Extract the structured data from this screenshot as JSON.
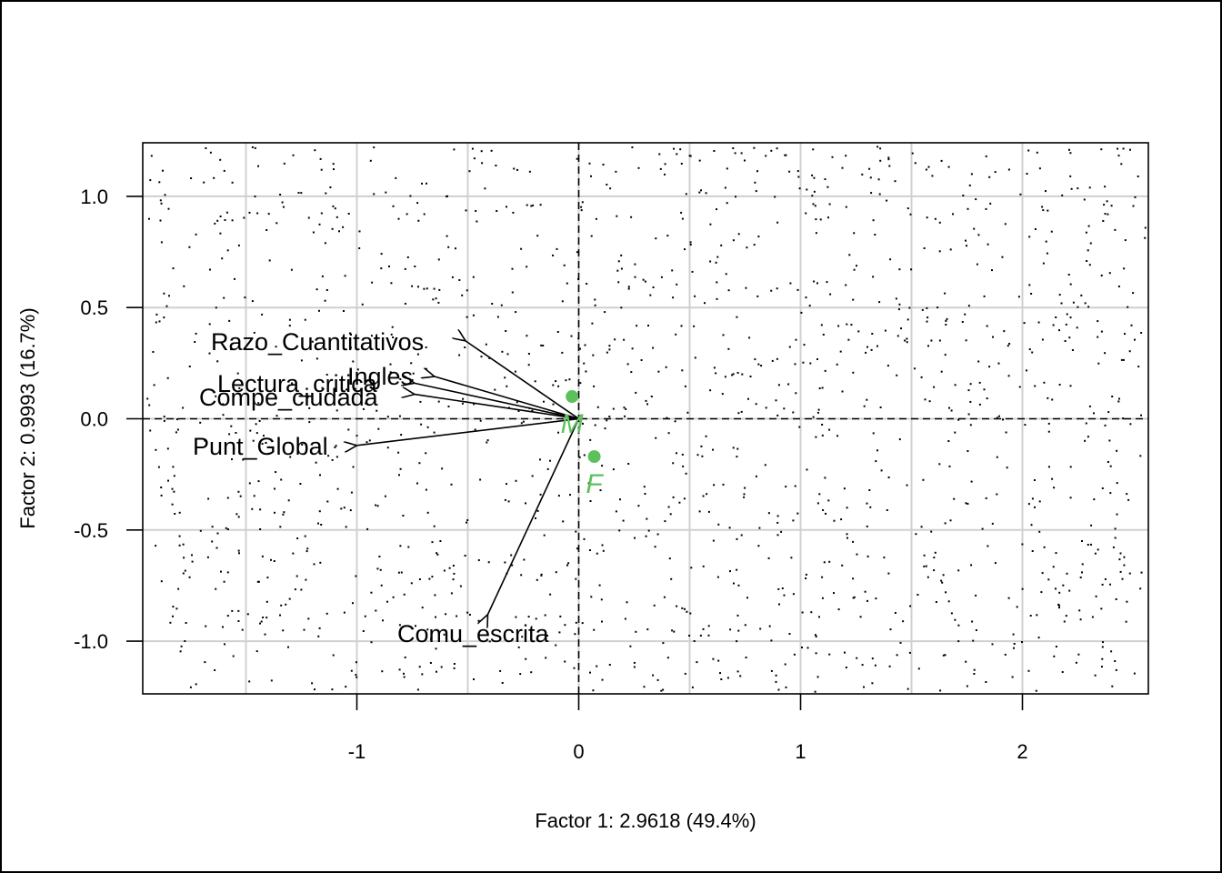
{
  "chart_data": {
    "type": "scatter",
    "xlabel": "Factor 1: 2.9618 (49.4%)",
    "ylabel": "Factor 2: 0.9993 (16.7%)",
    "xlim": [
      -1.97,
      2.57
    ],
    "ylim": [
      -1.24,
      1.24
    ],
    "x_ticks": [
      -1,
      0,
      1,
      2
    ],
    "x_tick_labels": [
      "-1",
      "0",
      "1",
      "2"
    ],
    "y_ticks": [
      1.0,
      0.5,
      0.0,
      -0.5,
      -1.0
    ],
    "y_tick_labels": [
      "1.0",
      "0.5",
      "0.0",
      "-0.5",
      "-1.0"
    ],
    "grid": true,
    "x_grid": [
      -1.5,
      -1,
      -0.5,
      0,
      0.5,
      1,
      1.5,
      2
    ],
    "y_grid": [
      -1.0,
      -0.5,
      0.0,
      0.5,
      1.0
    ],
    "reference_lines": {
      "x": 0,
      "y": 0,
      "style": "dashed"
    },
    "background_points": "dense cloud of small individual observations",
    "variable_arrows": [
      {
        "name": "Razo_Cuantitativos",
        "x": -0.51,
        "y": 0.35
      },
      {
        "name": "Ingles",
        "x": -0.65,
        "y": 0.19
      },
      {
        "name": "Lectura_critica",
        "x": -0.74,
        "y": 0.16
      },
      {
        "name": "Compe_ciudada",
        "x": -0.74,
        "y": 0.11
      },
      {
        "name": "Punt_Global",
        "x": -1.0,
        "y": -0.12
      },
      {
        "name": "Comu_escrita",
        "x": -0.41,
        "y": -0.88
      }
    ],
    "supplementary_points": [
      {
        "name": "M",
        "x": -0.03,
        "y": 0.1,
        "color": "#5cc05c"
      },
      {
        "name": "F",
        "x": 0.07,
        "y": -0.17,
        "color": "#5cc05c"
      }
    ],
    "colors": {
      "grid": "#d0d0d0",
      "supplementary": "#5cc05c",
      "axes": "#000000"
    }
  }
}
